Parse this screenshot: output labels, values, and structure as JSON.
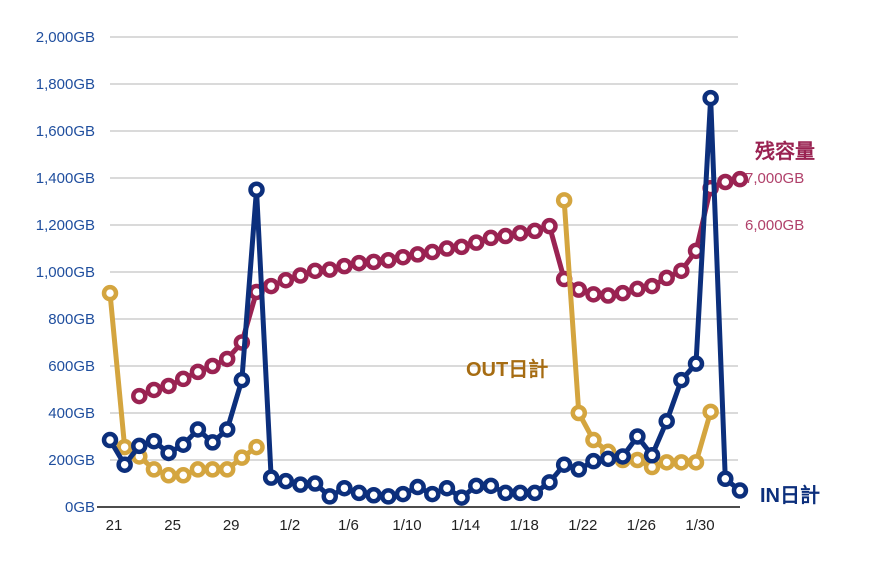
{
  "chart_data": {
    "type": "line",
    "title": "",
    "x_tick_labels": [
      "21",
      "25",
      "29",
      "1/2",
      "1/6",
      "1/10",
      "1/14",
      "1/18",
      "1/22",
      "1/26",
      "1/30"
    ],
    "x_tick_step_days": 4,
    "num_days": 44,
    "y_left": {
      "ticks": [
        "0GB",
        "200GB",
        "400GB",
        "600GB",
        "800GB",
        "1,000GB",
        "1,200GB",
        "1,400GB",
        "1,600GB",
        "1,800GB",
        "2,000GB"
      ],
      "range": [
        0,
        2000
      ],
      "step": 200
    },
    "y_right": {
      "ticks": [
        "6,000GB",
        "7,000GB"
      ],
      "tick_values": [
        6000,
        7000
      ],
      "scale_factor_vs_left": 5
    },
    "grid": true,
    "colors": {
      "in": "#0c2f7c",
      "out": "#d4a53f",
      "capacity": "#9a2352",
      "left_axis": "#1f4e9e",
      "right_axis": "#b0406a",
      "out_label": "#a66c12"
    },
    "series": [
      {
        "name": "残容量",
        "key": "capacity",
        "axis": "right",
        "label_text": "残容量",
        "values": [
          null,
          null,
          2360,
          2490,
          2575,
          2725,
          2875,
          3000,
          3150,
          3500,
          4575,
          4700,
          4825,
          4925,
          5025,
          5050,
          5125,
          5190,
          5215,
          5250,
          5315,
          5375,
          5425,
          5500,
          5535,
          5625,
          5725,
          5765,
          5825,
          5875,
          5975,
          4850,
          4625,
          4525,
          4500,
          4550,
          4640,
          4700,
          4875,
          5025,
          5450,
          6785,
          6915,
          6975
        ]
      },
      {
        "name": "OUT日計",
        "key": "out",
        "axis": "left",
        "label_text": "OUT日計",
        "values": [
          910,
          255,
          215,
          160,
          135,
          135,
          160,
          160,
          160,
          210,
          255,
          null,
          null,
          null,
          null,
          null,
          null,
          null,
          null,
          null,
          null,
          null,
          null,
          null,
          null,
          null,
          null,
          null,
          null,
          null,
          null,
          1305,
          400,
          285,
          235,
          200,
          200,
          170,
          190,
          190,
          190,
          405,
          null,
          null
        ]
      },
      {
        "name": "IN日計",
        "key": "in",
        "axis": "left",
        "label_text": "IN日計",
        "values": [
          285,
          180,
          260,
          280,
          230,
          265,
          330,
          275,
          330,
          540,
          1350,
          125,
          110,
          95,
          100,
          45,
          80,
          60,
          50,
          45,
          55,
          85,
          55,
          80,
          40,
          90,
          90,
          60,
          60,
          60,
          105,
          180,
          160,
          195,
          205,
          215,
          300,
          220,
          365,
          540,
          610,
          1740,
          120,
          70
        ]
      }
    ]
  }
}
